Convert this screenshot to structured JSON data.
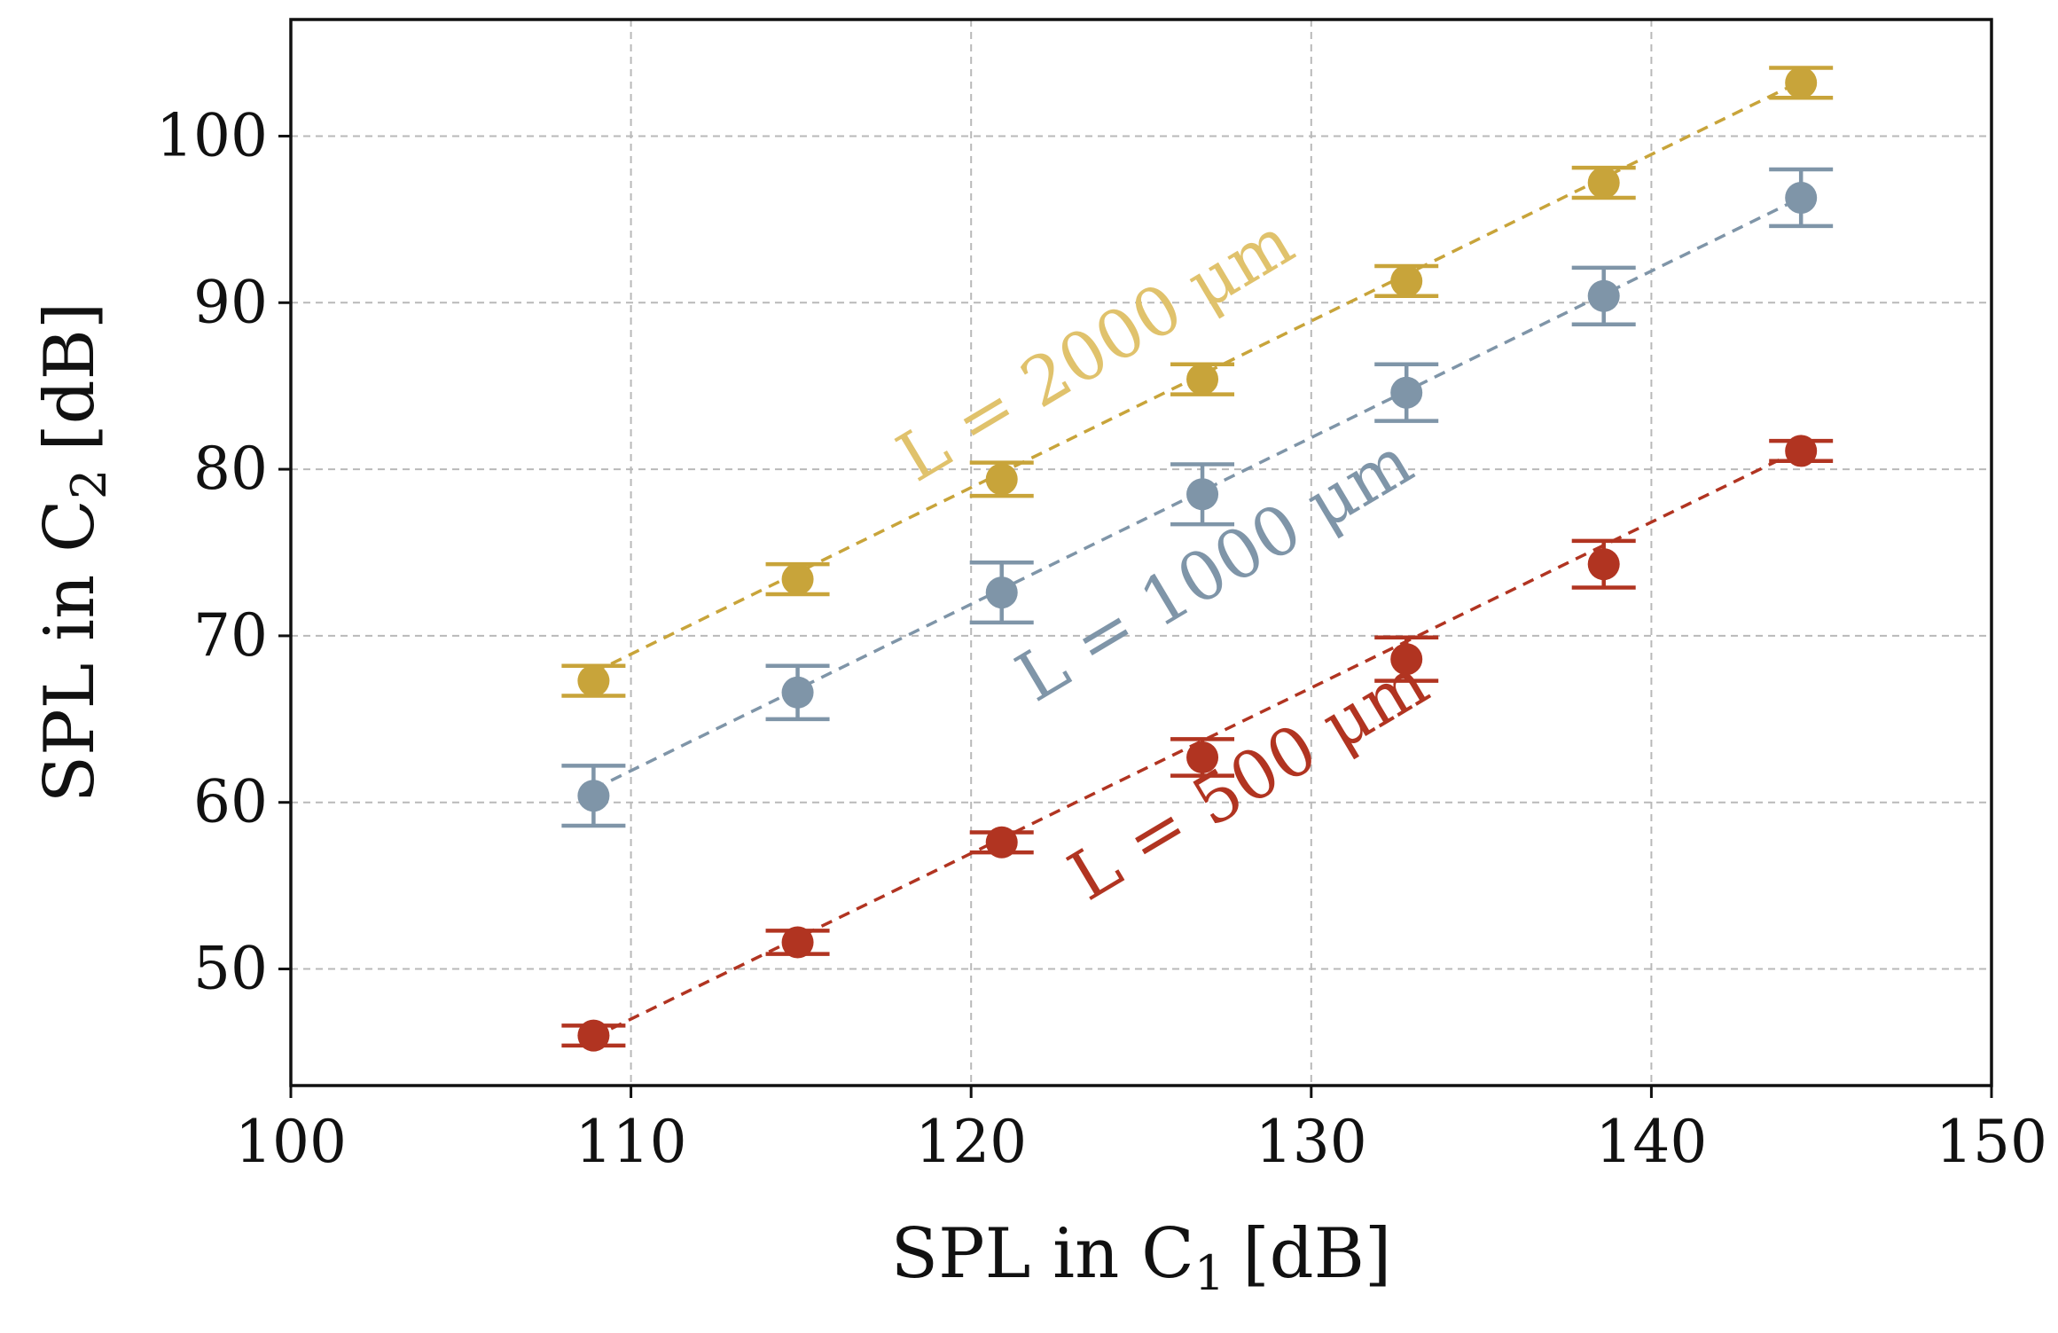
{
  "chart_data": {
    "type": "scatter",
    "title": "",
    "xlabel": "SPL in C",
    "xlabel_sub": "1",
    "xlabel_unit": "[dB]",
    "ylabel": "SPL in C",
    "ylabel_sub": "2",
    "ylabel_unit": "[dB]",
    "xlim": [
      100,
      150
    ],
    "ylim": [
      43,
      107
    ],
    "x_ticks": [
      100,
      110,
      120,
      130,
      140,
      150
    ],
    "y_ticks": [
      50,
      60,
      70,
      80,
      90,
      100
    ],
    "x_tick_labels": [
      "100",
      "110",
      "120",
      "130",
      "140",
      "150"
    ],
    "y_tick_labels": [
      "50",
      "60",
      "70",
      "80",
      "90",
      "100"
    ],
    "grid": true,
    "x": [
      108.9,
      114.9,
      120.9,
      126.8,
      132.8,
      138.6,
      144.4
    ],
    "series": [
      {
        "name": "L = 2000 μm",
        "color": "#c8a43a",
        "values": [
          67.3,
          73.4,
          79.4,
          85.4,
          91.3,
          97.2,
          103.2
        ],
        "errors": [
          0.9,
          0.9,
          1.0,
          0.9,
          0.9,
          0.9,
          0.9
        ],
        "fit": [
          [
            108.9,
            67.8
          ],
          [
            144.4,
            103.3
          ]
        ]
      },
      {
        "name": "L = 1000 μm",
        "color": "#7f95a8",
        "values": [
          60.4,
          66.6,
          72.6,
          78.5,
          84.6,
          90.4,
          96.3
        ],
        "errors": [
          1.8,
          1.6,
          1.8,
          1.8,
          1.7,
          1.7,
          1.7
        ],
        "fit": [
          [
            108.9,
            60.8
          ],
          [
            144.4,
            96.3
          ]
        ]
      },
      {
        "name": "L = 500 μm",
        "color": "#b13421",
        "values": [
          46.0,
          51.6,
          57.6,
          62.7,
          68.6,
          74.3,
          81.1
        ],
        "errors": [
          0.6,
          0.7,
          0.6,
          1.1,
          1.3,
          1.4,
          0.6
        ],
        "fit": [
          [
            108.9,
            45.9
          ],
          [
            144.4,
            81.2
          ]
        ]
      }
    ],
    "annotations": [
      {
        "text": "L = 2000 μm",
        "x": 124,
        "y": 86,
        "angle_deg": -30.8,
        "color": "#e0c26c"
      },
      {
        "text": "L = 1000 μm",
        "x": 127.5,
        "y": 72.8,
        "angle_deg": -30.8,
        "color": "#7f95a8"
      },
      {
        "text": "L = 500 μm",
        "x": 128.5,
        "y": 60.2,
        "angle_deg": -30.8,
        "color": "#b13421"
      }
    ]
  }
}
